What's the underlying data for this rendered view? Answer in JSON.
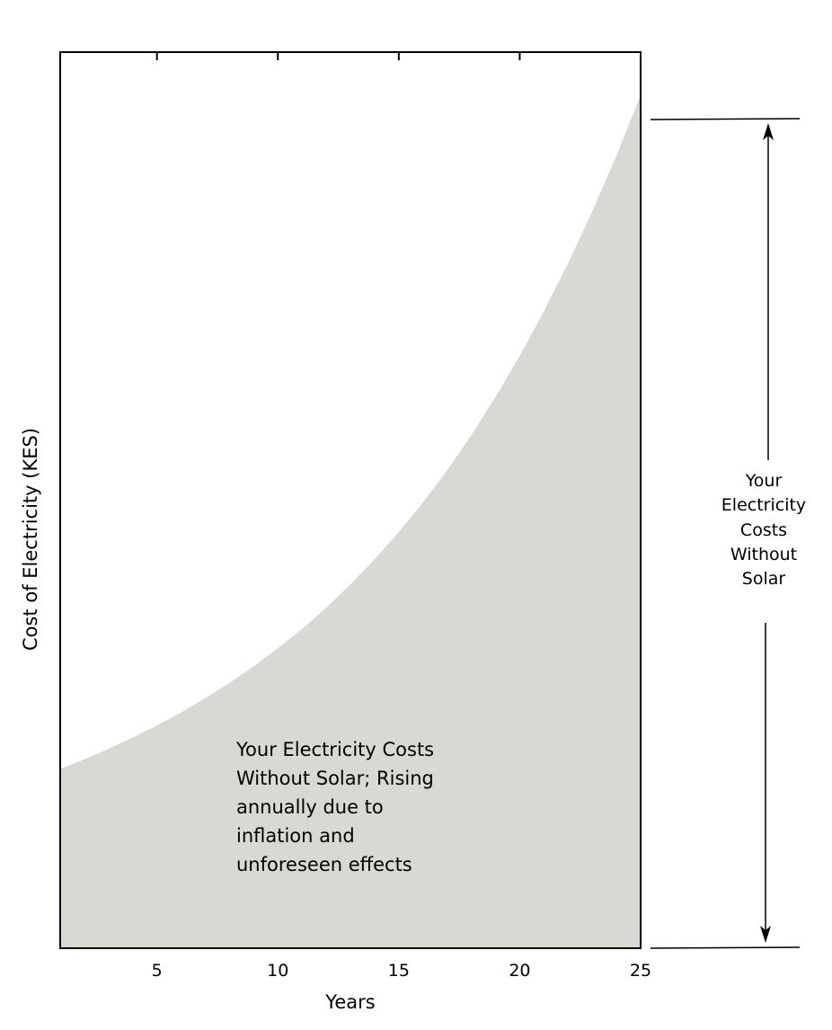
{
  "chart_data": {
    "type": "area",
    "title": "",
    "xlabel": "Years",
    "ylabel": "Cost of Electricity (KES)",
    "xlim": [
      1,
      25
    ],
    "x_ticks": [
      5,
      10,
      15,
      20,
      25
    ],
    "y_ticks_labeled": false,
    "series": [
      {
        "x": [
          1,
          2,
          3,
          4,
          5,
          6,
          7,
          8,
          9,
          10,
          11,
          12,
          13,
          14,
          15,
          16,
          17,
          18,
          19,
          20,
          21,
          22,
          23,
          24,
          25
        ],
        "y": [
          1.0,
          1.054,
          1.113,
          1.176,
          1.243,
          1.316,
          1.395,
          1.481,
          1.573,
          1.674,
          1.782,
          1.9,
          2.03,
          2.17,
          2.322,
          2.487,
          2.667,
          2.863,
          3.075,
          3.305,
          3.553,
          3.822,
          4.112,
          4.423,
          4.76
        ],
        "fill_color": "#dad8d2"
      }
    ],
    "ylim": [
      0,
      5.0
    ],
    "grid": false,
    "legend": "none",
    "annotations": {
      "area_lines": [
        "Your Electricity Costs",
        "Without Solar; Rising",
        "annually due to",
        "inflation and",
        "unforeseen effects"
      ],
      "side_lines": [
        "Your",
        "Electricity",
        "Costs",
        "Without",
        "Solar"
      ]
    }
  }
}
